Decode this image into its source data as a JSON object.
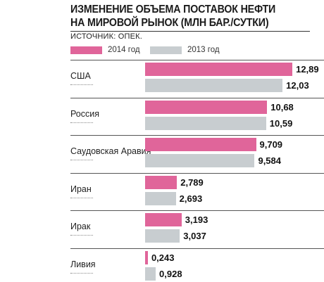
{
  "title_lines": [
    "Изменение объема поставок нефти",
    "на мировой рынок (млн бар./сутки)"
  ],
  "source": "ИСТОЧНИК: ОПЕК.",
  "chart_data": {
    "type": "bar",
    "orientation": "horizontal",
    "title": "Изменение объема поставок нефти на мировой рынок (млн бар./сутки)",
    "categories": [
      "США",
      "Россия",
      "Саудовская Аравия",
      "Иран",
      "Ирак",
      "Ливия"
    ],
    "series": [
      {
        "name": "2014 год",
        "color": "#e0659a",
        "values": [
          12.89,
          10.68,
          9.709,
          2.789,
          3.193,
          0.243
        ],
        "labels": [
          "12,89",
          "10,68",
          "9,709",
          "2,789",
          "3,193",
          "0,243"
        ]
      },
      {
        "name": "2013 год",
        "color": "#c8cdd0",
        "values": [
          12.03,
          10.59,
          9.584,
          2.693,
          3.037,
          0.928
        ],
        "labels": [
          "12,03",
          "10,59",
          "9,584",
          "2,693",
          "3,037",
          "0,928"
        ]
      }
    ],
    "xlim": [
      0,
      13.5
    ],
    "legend": "top"
  }
}
